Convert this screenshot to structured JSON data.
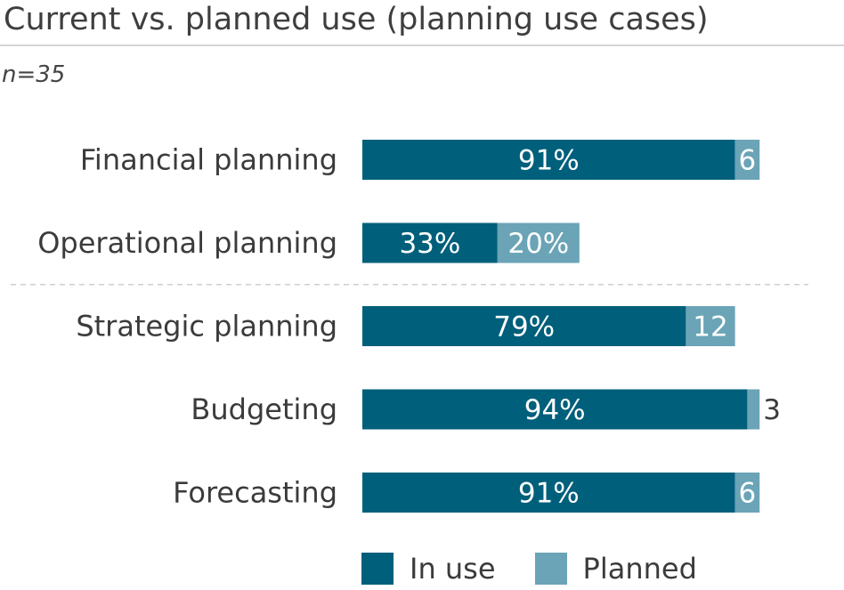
{
  "title": "Current vs. planned use (planning use cases)",
  "subtitle": "n=35",
  "colors": {
    "in_use": "#005f7b",
    "planned": "#6aa4b6",
    "divider": "#cfcfcf"
  },
  "legend": {
    "in_use": "In use",
    "planned": "Planned"
  },
  "chart_data": {
    "type": "bar",
    "orientation": "horizontal",
    "stacked": true,
    "categories": [
      "Financial planning",
      "Operational planning",
      "Strategic planning",
      "Budgeting",
      "Forecasting"
    ],
    "series": [
      {
        "name": "In use",
        "values": [
          91,
          33,
          79,
          94,
          91
        ],
        "labels": [
          "91%",
          "33%",
          "79%",
          "94%",
          "91%"
        ]
      },
      {
        "name": "Planned",
        "values": [
          6,
          20,
          12,
          3,
          6
        ],
        "labels": [
          "6",
          "20%",
          "12",
          "3",
          "6"
        ]
      }
    ],
    "xlim": [
      0,
      100
    ],
    "grid": false,
    "legend_position": "bottom"
  }
}
